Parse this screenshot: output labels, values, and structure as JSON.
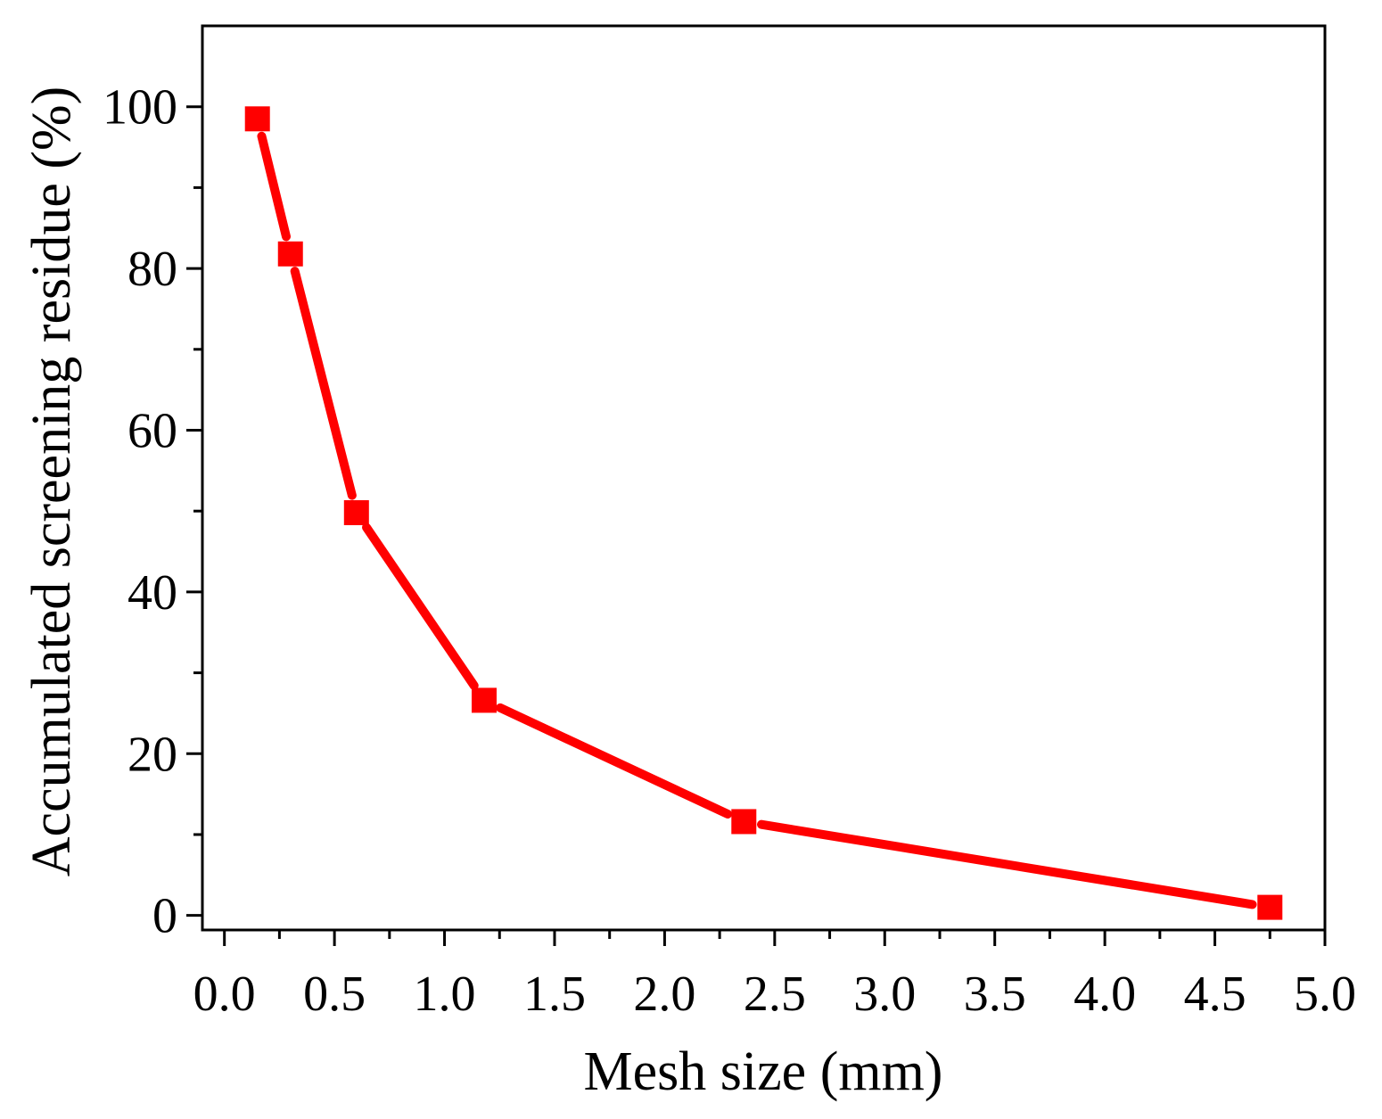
{
  "chart_data": {
    "type": "line",
    "title": "",
    "xlabel": "Mesh size (mm)",
    "ylabel": "Accumulated screening residue (%)",
    "xlim": [
      -0.1,
      5.0
    ],
    "ylim": [
      -1.8,
      110
    ],
    "x_ticks": [
      0.0,
      0.5,
      1.0,
      1.5,
      2.0,
      2.5,
      3.0,
      3.5,
      4.0,
      4.5,
      5.0
    ],
    "x_tick_labels": [
      "0.0",
      "0.5",
      "1.0",
      "1.5",
      "2.0",
      "2.5",
      "3.0",
      "3.5",
      "4.0",
      "4.5",
      "5.0"
    ],
    "y_ticks": [
      0,
      20,
      40,
      60,
      80,
      100
    ],
    "y_tick_labels": [
      "0",
      "20",
      "40",
      "60",
      "80",
      "100"
    ],
    "grid": false,
    "legend": "none",
    "series": [
      {
        "color": "#ff0000",
        "marker": "square",
        "x": [
          0.15,
          0.3,
          0.6,
          1.18,
          2.36,
          4.75
        ],
        "y": [
          98.5,
          81.8,
          49.8,
          26.6,
          11.6,
          1.0
        ]
      }
    ]
  }
}
